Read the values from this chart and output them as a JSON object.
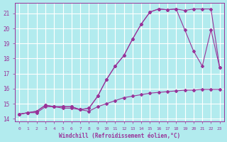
{
  "background_color": "#b2ebee",
  "grid_color": "#ffffff",
  "line_color": "#993399",
  "xlabel": "Windchill (Refroidissement éolien,°C)",
  "xlim": [
    -0.5,
    23.5
  ],
  "ylim": [
    13.8,
    21.7
  ],
  "yticks": [
    14,
    15,
    16,
    17,
    18,
    19,
    20,
    21
  ],
  "xticks": [
    0,
    1,
    2,
    3,
    4,
    5,
    6,
    7,
    8,
    9,
    10,
    11,
    12,
    13,
    14,
    15,
    16,
    17,
    18,
    19,
    20,
    21,
    22,
    23
  ],
  "line1_x": [
    0,
    1,
    2,
    3,
    4,
    5,
    6,
    7,
    8,
    9,
    10,
    11,
    12,
    13,
    14,
    15,
    16,
    17,
    18,
    19,
    20,
    21,
    22,
    23
  ],
  "line1_y": [
    14.3,
    14.4,
    14.4,
    14.8,
    14.8,
    14.7,
    14.7,
    14.6,
    14.5,
    14.8,
    15.0,
    15.2,
    15.4,
    15.5,
    15.6,
    15.7,
    15.75,
    15.8,
    15.85,
    15.9,
    15.9,
    15.95,
    15.95,
    15.95
  ],
  "line2_x": [
    0,
    1,
    2,
    3,
    4,
    5,
    6,
    7,
    8,
    9,
    10,
    11,
    12,
    13,
    14,
    15,
    16,
    17,
    18,
    19,
    20,
    21,
    22,
    23
  ],
  "line2_y": [
    14.3,
    14.4,
    14.5,
    14.9,
    14.8,
    14.8,
    14.8,
    14.6,
    14.7,
    15.5,
    16.6,
    17.5,
    18.2,
    19.3,
    20.3,
    21.1,
    21.3,
    21.25,
    21.3,
    21.2,
    21.3,
    21.3,
    21.3,
    17.4
  ],
  "line3_x": [
    0,
    1,
    2,
    3,
    4,
    5,
    6,
    7,
    8,
    9,
    10,
    11,
    12,
    13,
    14,
    15,
    16,
    17,
    18,
    19,
    20,
    21,
    22,
    23
  ],
  "line3_y": [
    14.3,
    14.4,
    14.5,
    14.9,
    14.8,
    14.8,
    14.8,
    14.6,
    14.7,
    15.5,
    16.6,
    17.5,
    18.2,
    19.3,
    20.3,
    21.1,
    21.3,
    21.25,
    21.3,
    19.9,
    18.5,
    17.5,
    19.9,
    17.4
  ]
}
